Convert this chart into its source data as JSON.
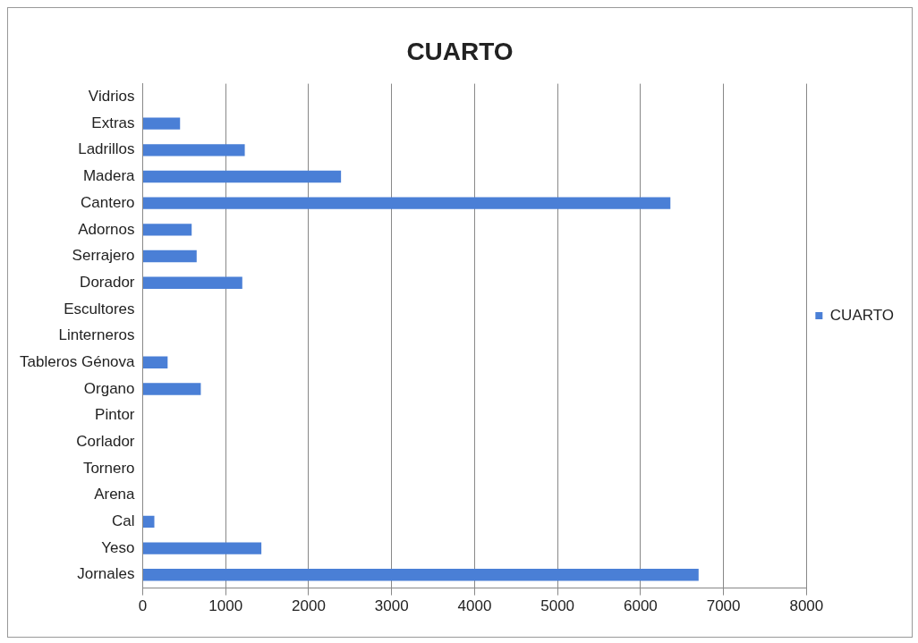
{
  "chart_data": {
    "type": "bar",
    "orientation": "horizontal",
    "title": "CUARTO",
    "categories": [
      "Vidrios",
      "Extras",
      "Ladrillos",
      "Madera",
      "Cantero",
      "Adornos",
      "Serrajero",
      "Dorador",
      "Escultores",
      "Linterneros",
      "Tableros Génova",
      "Organo",
      "Pintor",
      "Corlador",
      "Tornero",
      "Arena",
      "Cal",
      "Yeso",
      "Jornales"
    ],
    "series": [
      {
        "name": "CUARTO",
        "color": "#4a7fd6",
        "values": [
          0,
          450,
          1230,
          2390,
          6360,
          590,
          650,
          1200,
          0,
          0,
          300,
          700,
          0,
          0,
          0,
          0,
          140,
          1430,
          6700
        ]
      }
    ],
    "xlim": [
      0,
      8000
    ],
    "xticks": [
      0,
      1000,
      2000,
      3000,
      4000,
      5000,
      6000,
      7000,
      8000
    ],
    "grid": "x",
    "legend": "right"
  }
}
